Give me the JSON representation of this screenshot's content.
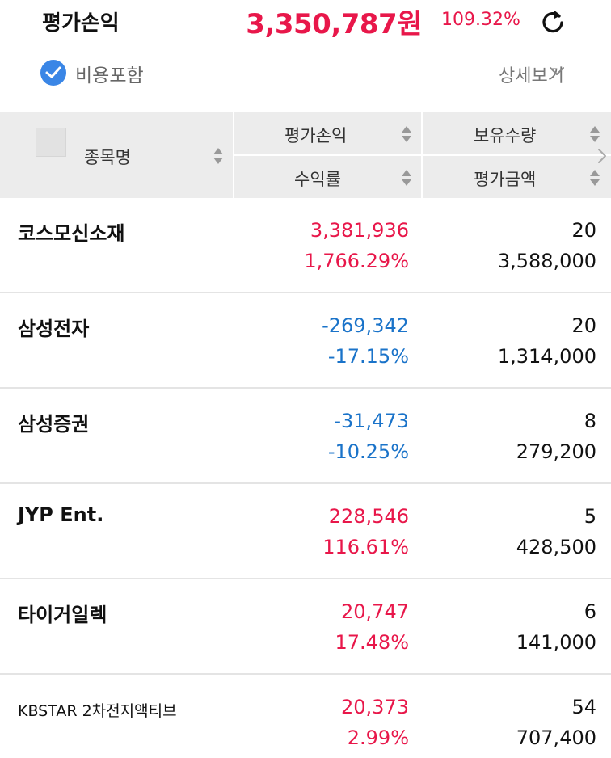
{
  "summary": {
    "label": "평가손익",
    "value": "3,350,787원",
    "rate": "109.32%"
  },
  "options": {
    "include_cost_label": "비용포함",
    "include_cost_checked": true,
    "detail_label": "상세보기"
  },
  "table": {
    "headers": {
      "name": "종목명",
      "profit_loss": "평가손익",
      "return_rate": "수익률",
      "quantity": "보유수량",
      "valuation": "평가금액"
    },
    "rows": [
      {
        "name": "코스모신소재",
        "profit_loss": "3,381,936",
        "return_rate": "1,766.29%",
        "quantity": "20",
        "valuation": "3,588,000",
        "sign": "pos"
      },
      {
        "name": "삼성전자",
        "profit_loss": "-269,342",
        "return_rate": "-17.15%",
        "quantity": "20",
        "valuation": "1,314,000",
        "sign": "neg"
      },
      {
        "name": "삼성증권",
        "profit_loss": "-31,473",
        "return_rate": "-10.25%",
        "quantity": "8",
        "valuation": "279,200",
        "sign": "neg"
      },
      {
        "name": "JYP Ent.",
        "profit_loss": "228,546",
        "return_rate": "116.61%",
        "quantity": "5",
        "valuation": "428,500",
        "sign": "pos"
      },
      {
        "name": "타이거일렉",
        "profit_loss": "20,747",
        "return_rate": "17.48%",
        "quantity": "6",
        "valuation": "141,000",
        "sign": "pos"
      },
      {
        "name": "KBSTAR 2차전지액티브",
        "profit_loss": "20,373",
        "return_rate": "2.99%",
        "quantity": "54",
        "valuation": "707,400",
        "sign": "pos"
      }
    ]
  },
  "colors": {
    "positive": "#e8174a",
    "negative": "#1a73c9",
    "accent": "#3a86e6"
  },
  "icons": {
    "refresh": "refresh-icon",
    "check": "check-icon",
    "chevron": "chevron-down-icon",
    "sort": "sort-icon"
  }
}
